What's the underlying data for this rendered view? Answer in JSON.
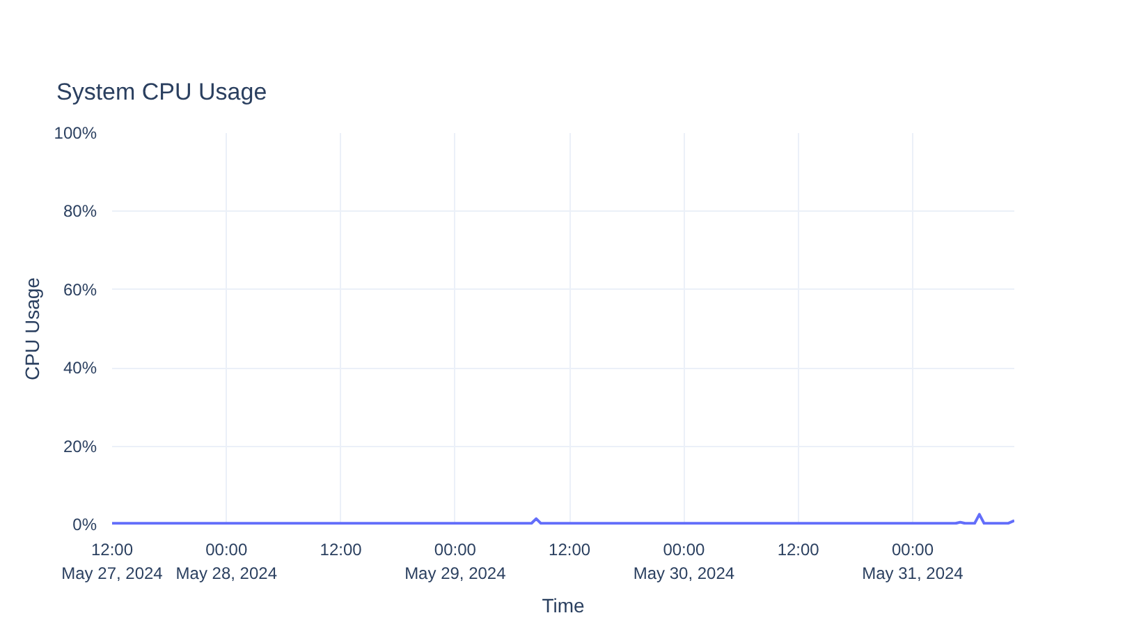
{
  "chart_data": {
    "type": "line",
    "title": "System CPU Usage",
    "xlabel": "Time",
    "ylabel": "CPU Usage",
    "x": [
      "2024-05-27T12:00",
      "2024-05-28T00:00",
      "2024-05-28T12:00",
      "2024-05-29T00:00",
      "2024-05-29T08:00",
      "2024-05-29T08:30",
      "2024-05-29T09:00",
      "2024-05-29T12:00",
      "2024-05-30T00:00",
      "2024-05-30T12:00",
      "2024-05-31T00:00",
      "2024-05-31T04:30",
      "2024-05-31T05:00",
      "2024-05-31T05:30",
      "2024-05-31T06:30",
      "2024-05-31T07:00",
      "2024-05-31T07:30",
      "2024-05-31T10:00",
      "2024-05-31T10:40"
    ],
    "series": [
      {
        "color": "#636efa",
        "values": [
          0.3,
          0.3,
          0.3,
          0.3,
          0.3,
          1.5,
          0.3,
          0.3,
          0.3,
          0.3,
          0.3,
          0.3,
          0.6,
          0.3,
          0.3,
          2.6,
          0.3,
          0.3,
          1.0
        ]
      }
    ],
    "xlim": [
      "2024-05-27T12:00",
      "2024-05-31T10:40"
    ],
    "xticks": [
      {
        "value": "2024-05-27T12:00",
        "label": "12:00\nMay 27, 2024"
      },
      {
        "value": "2024-05-28T00:00",
        "label": "00:00\nMay 28, 2024"
      },
      {
        "value": "2024-05-28T12:00",
        "label": "12:00"
      },
      {
        "value": "2024-05-29T00:00",
        "label": "00:00\nMay 29, 2024"
      },
      {
        "value": "2024-05-29T12:00",
        "label": "12:00"
      },
      {
        "value": "2024-05-30T00:00",
        "label": "00:00\nMay 30, 2024"
      },
      {
        "value": "2024-05-30T12:00",
        "label": "12:00"
      },
      {
        "value": "2024-05-31T00:00",
        "label": "00:00\nMay 31, 2024"
      }
    ],
    "ylim": [
      0,
      100
    ],
    "yticks": [
      {
        "value": 0,
        "label": "0%"
      },
      {
        "value": 20,
        "label": "20%"
      },
      {
        "value": 40,
        "label": "40%"
      },
      {
        "value": 60,
        "label": "60%"
      },
      {
        "value": 80,
        "label": "80%"
      },
      {
        "value": 100,
        "label": "100%"
      }
    ],
    "grid": true,
    "marker": "none",
    "line_style": "solid"
  }
}
